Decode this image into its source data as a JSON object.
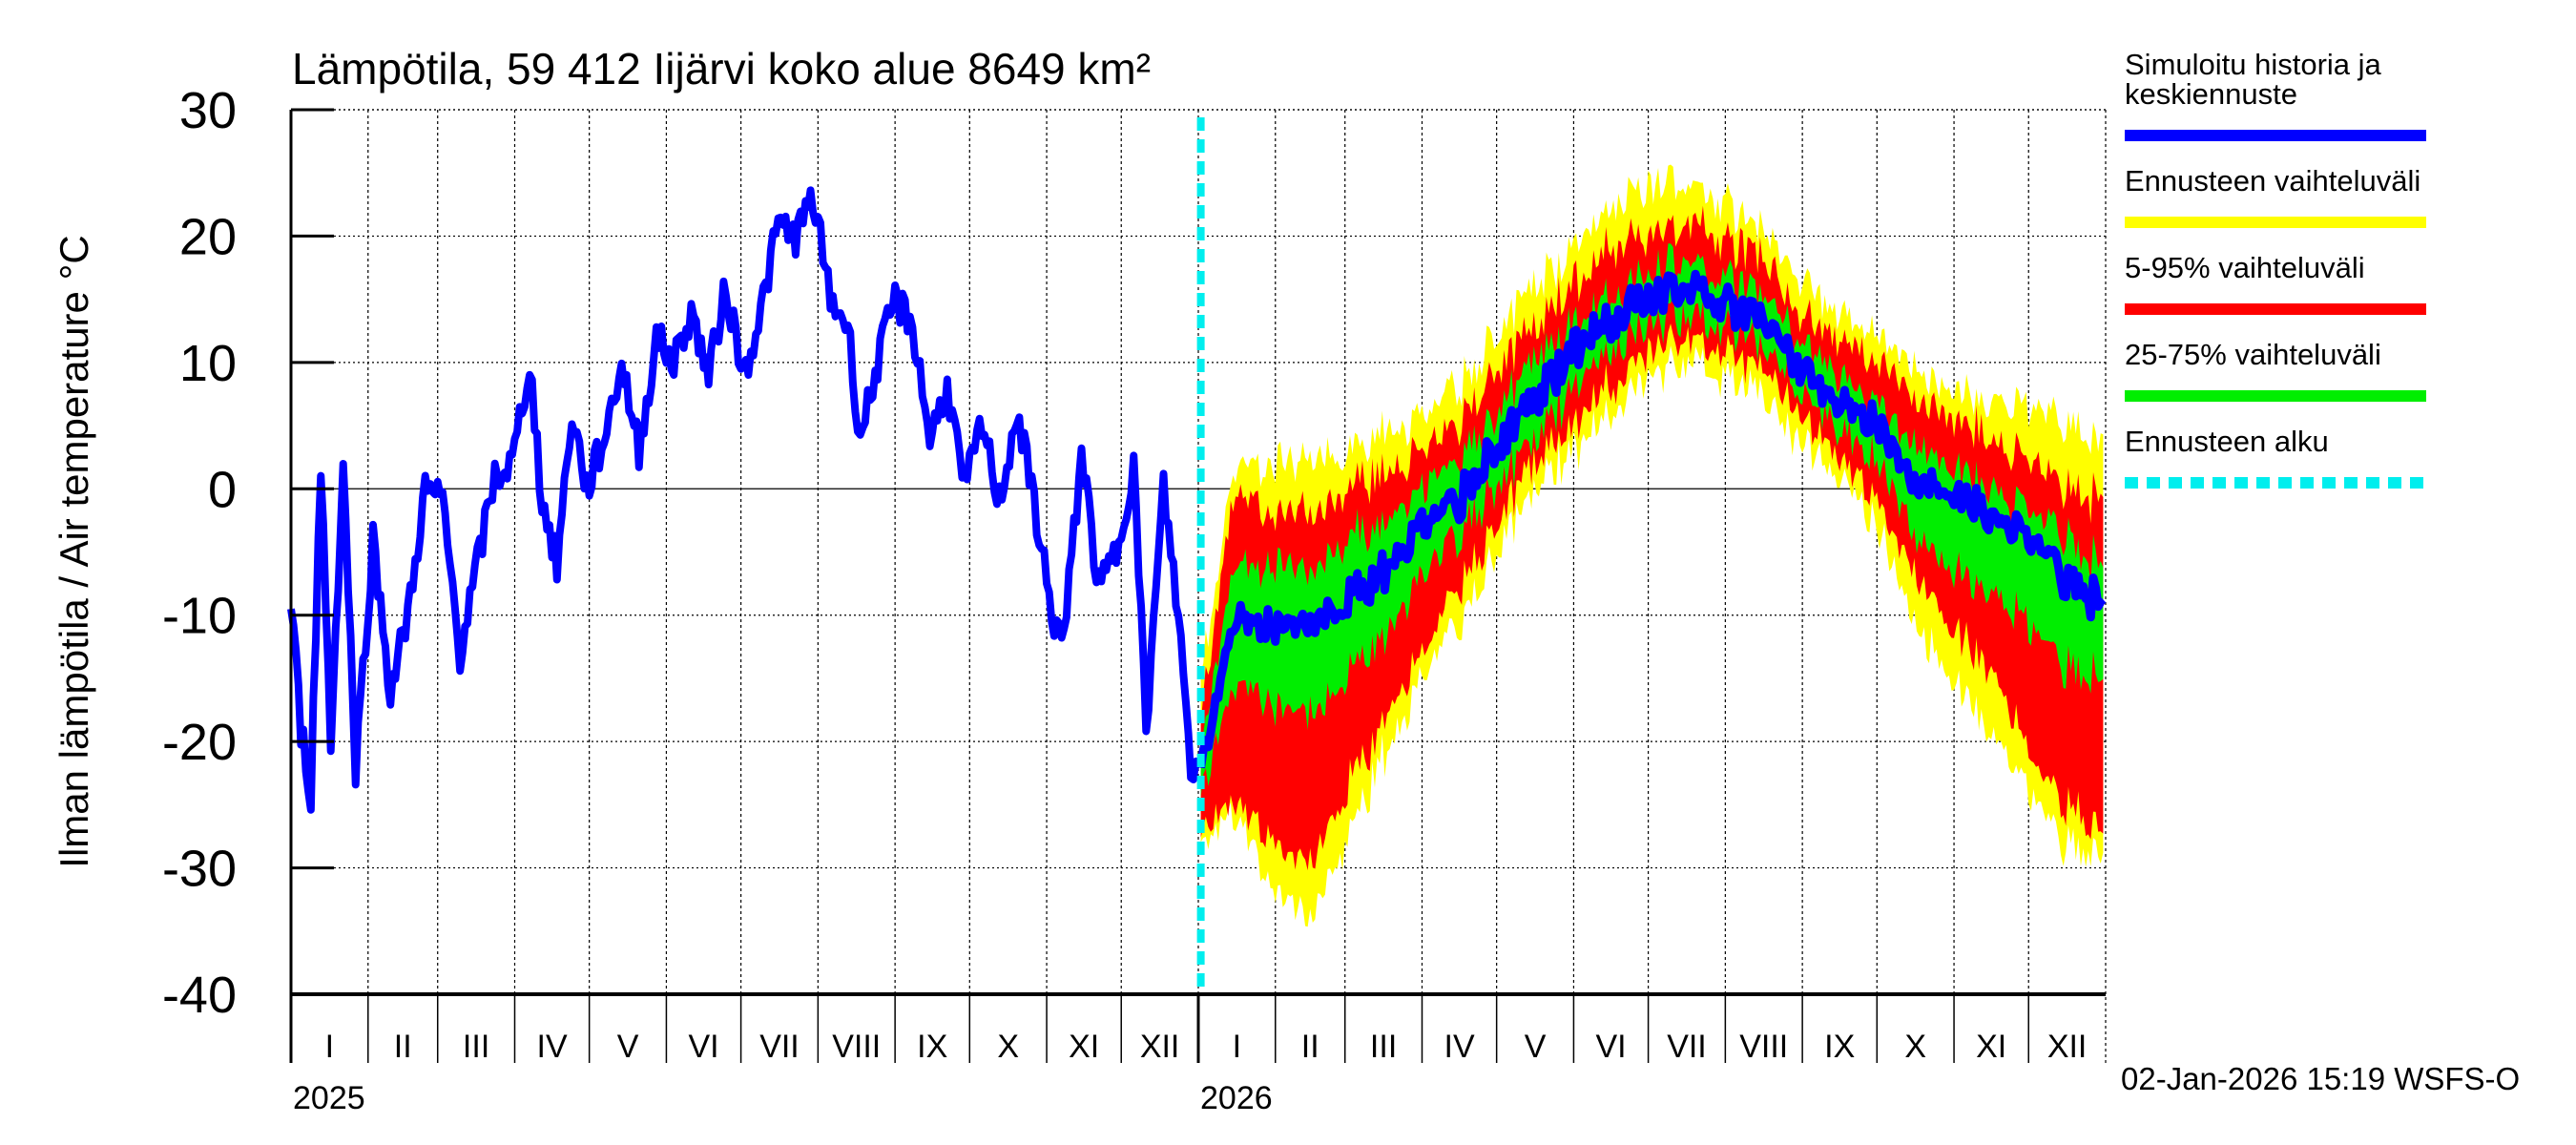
{
  "chart_data": {
    "type": "line",
    "title": "Lämpötila, 59 412 Iijärvi koko alue 8649 km²",
    "ylabel": "Ilman lämpötila / Air temperature   °C",
    "ylim": [
      -40,
      30
    ],
    "yticks": [
      "30",
      "20",
      "10",
      "0",
      "-10",
      "-20",
      "-30",
      "-40"
    ],
    "xlim": [
      "2025-01-01",
      "2027-01-01"
    ],
    "month_labels": [
      "I",
      "II",
      "III",
      "IV",
      "V",
      "VI",
      "VII",
      "VIII",
      "IX",
      "X",
      "XI",
      "XII"
    ],
    "year_labels": [
      "2025",
      "2026"
    ],
    "grid": true,
    "legend_position": "right",
    "legend": [
      {
        "label_lines": [
          "Simuloitu historia ja",
          "keskiennuste"
        ],
        "color": "#0000ff",
        "style": "solid"
      },
      {
        "label_lines": [
          "Ennusteen vaihteluväli"
        ],
        "color": "#ffff00",
        "style": "solid"
      },
      {
        "label_lines": [
          "5-95% vaihteluväli"
        ],
        "color": "#ff0000",
        "style": "solid"
      },
      {
        "label_lines": [
          "25-75% vaihteluväli"
        ],
        "color": "#00ee00",
        "style": "solid"
      },
      {
        "label_lines": [
          "Ennusteen alku"
        ],
        "color": "#00eeee",
        "style": "dashed"
      }
    ],
    "forecast_start": "2026-01-02",
    "history": [
      [
        "2025-01-01",
        -9
      ],
      [
        "2025-01-05",
        -19
      ],
      [
        "2025-01-09",
        -24
      ],
      [
        "2025-01-13",
        2
      ],
      [
        "2025-01-17",
        -20
      ],
      [
        "2025-01-22",
        2
      ],
      [
        "2025-01-27",
        -22
      ],
      [
        "2025-02-03",
        -4
      ],
      [
        "2025-02-10",
        -16
      ],
      [
        "2025-02-17",
        -10
      ],
      [
        "2025-02-24",
        0
      ],
      [
        "2025-03-03",
        -1
      ],
      [
        "2025-03-10",
        -13
      ],
      [
        "2025-03-17",
        -6
      ],
      [
        "2025-03-24",
        1
      ],
      [
        "2025-03-31",
        2
      ],
      [
        "2025-04-07",
        10
      ],
      [
        "2025-04-12",
        -1
      ],
      [
        "2025-04-18",
        -6
      ],
      [
        "2025-04-24",
        6
      ],
      [
        "2025-04-30",
        0
      ],
      [
        "2025-05-07",
        4
      ],
      [
        "2025-05-14",
        10
      ],
      [
        "2025-05-21",
        3
      ],
      [
        "2025-05-28",
        12
      ],
      [
        "2025-06-04",
        10
      ],
      [
        "2025-06-11",
        14
      ],
      [
        "2025-06-18",
        9
      ],
      [
        "2025-06-25",
        16
      ],
      [
        "2025-07-02",
        9
      ],
      [
        "2025-07-09",
        14
      ],
      [
        "2025-07-16",
        21
      ],
      [
        "2025-07-23",
        20
      ],
      [
        "2025-07-30",
        23
      ],
      [
        "2025-08-06",
        15
      ],
      [
        "2025-08-13",
        13
      ],
      [
        "2025-08-18",
        4
      ],
      [
        "2025-08-25",
        10
      ],
      [
        "2025-09-01",
        15
      ],
      [
        "2025-09-08",
        13
      ],
      [
        "2025-09-15",
        4
      ],
      [
        "2025-09-22",
        8
      ],
      [
        "2025-09-29",
        0
      ],
      [
        "2025-10-06",
        5
      ],
      [
        "2025-10-13",
        -1
      ],
      [
        "2025-10-20",
        6
      ],
      [
        "2025-10-27",
        -1
      ],
      [
        "2025-11-03",
        -10
      ],
      [
        "2025-11-08",
        -12
      ],
      [
        "2025-11-15",
        3
      ],
      [
        "2025-11-22",
        -8
      ],
      [
        "2025-11-29",
        -5
      ],
      [
        "2025-12-06",
        2
      ],
      [
        "2025-12-11",
        -19
      ],
      [
        "2025-12-18",
        0
      ],
      [
        "2025-12-24",
        -10
      ],
      [
        "2025-12-29",
        -22
      ],
      [
        "2026-01-02",
        -22
      ]
    ],
    "forecast_columns": [
      "date",
      "min",
      "p5",
      "p25",
      "median",
      "p75",
      "p95",
      "max"
    ],
    "forecast": [
      [
        "2026-01-02",
        -28,
        -27,
        -24,
        -22,
        -20,
        -18,
        -15
      ],
      [
        "2026-01-15",
        -25,
        -24,
        -15,
        -10,
        -6,
        0,
        2
      ],
      [
        "2026-02-01",
        -32,
        -28,
        -17,
        -11,
        -6,
        -2,
        2
      ],
      [
        "2026-02-15",
        -33,
        -29,
        -17,
        -10,
        -6,
        -1,
        3
      ],
      [
        "2026-03-01",
        -28,
        -24,
        -15,
        -9,
        -4,
        0,
        3
      ],
      [
        "2026-03-15",
        -22,
        -19,
        -12,
        -7,
        -3,
        1,
        4
      ],
      [
        "2026-04-01",
        -15,
        -13,
        -7,
        -3,
        0,
        3,
        6
      ],
      [
        "2026-04-15",
        -11,
        -8,
        -4,
        -1,
        2,
        5,
        8
      ],
      [
        "2026-05-01",
        -5,
        -3,
        0,
        3,
        6,
        9,
        12
      ],
      [
        "2026-05-15",
        0,
        2,
        4,
        7,
        10,
        13,
        16
      ],
      [
        "2026-06-01",
        3,
        5,
        8,
        11,
        13,
        16,
        19
      ],
      [
        "2026-06-15",
        6,
        8,
        11,
        13,
        15,
        19,
        22
      ],
      [
        "2026-07-01",
        9,
        11,
        13,
        15,
        17,
        20,
        24
      ],
      [
        "2026-07-15",
        10,
        12,
        14,
        16,
        18,
        21,
        24
      ],
      [
        "2026-08-01",
        9,
        11,
        13,
        15,
        17,
        20,
        23
      ],
      [
        "2026-08-15",
        7,
        9,
        11,
        13,
        15,
        18,
        20
      ],
      [
        "2026-09-01",
        4,
        6,
        8,
        10,
        12,
        14,
        17
      ],
      [
        "2026-09-15",
        1,
        3,
        5,
        7,
        9,
        12,
        14
      ],
      [
        "2026-10-01",
        -3,
        -1,
        2,
        5,
        7,
        10,
        12
      ],
      [
        "2026-10-15",
        -10,
        -6,
        -3,
        1,
        4,
        8,
        10
      ],
      [
        "2026-11-01",
        -15,
        -11,
        -6,
        0,
        2,
        6,
        8
      ],
      [
        "2026-11-15",
        -19,
        -14,
        -8,
        -2,
        0,
        4,
        7
      ],
      [
        "2026-12-01",
        -24,
        -21,
        -11,
        -4,
        -2,
        2,
        6
      ],
      [
        "2026-12-15",
        -28,
        -25,
        -14,
        -7,
        -4,
        0,
        5
      ],
      [
        "2026-12-31",
        -29,
        -27,
        -15,
        -9,
        -6,
        -1,
        4
      ]
    ]
  },
  "footer": {
    "timestamp": "02-Jan-2026 15:19 WSFS-O"
  }
}
